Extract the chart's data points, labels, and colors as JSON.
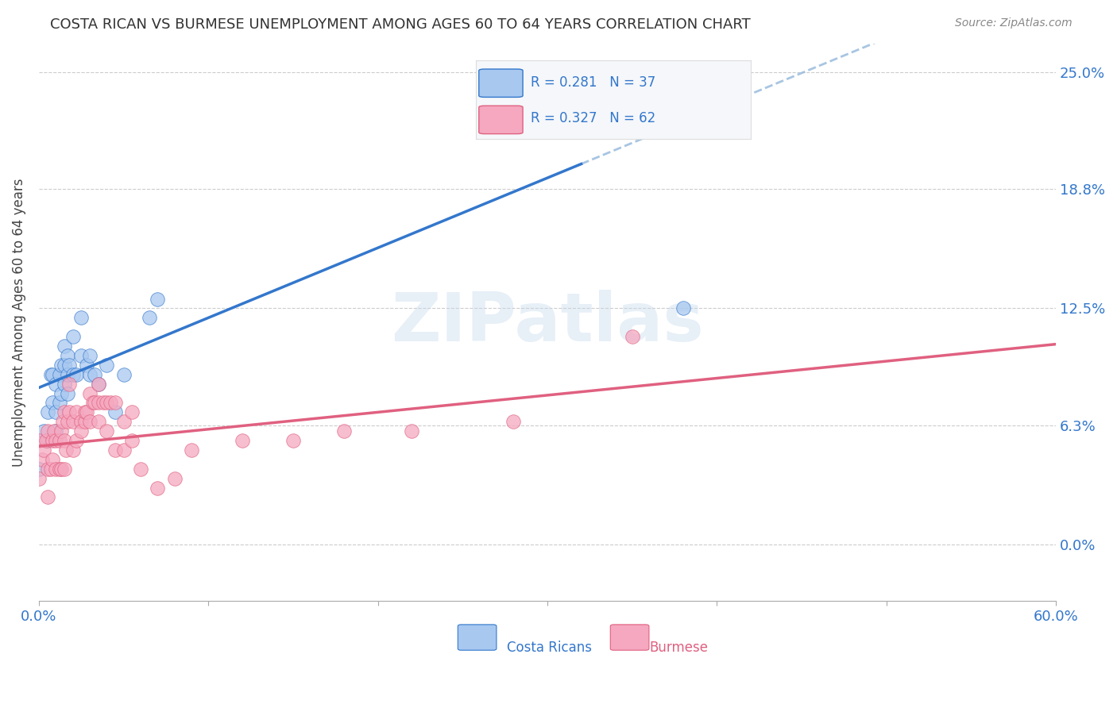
{
  "title": "COSTA RICAN VS BURMESE UNEMPLOYMENT AMONG AGES 60 TO 64 YEARS CORRELATION CHART",
  "source": "Source: ZipAtlas.com",
  "ylabel": "Unemployment Among Ages 60 to 64 years",
  "xmin": 0.0,
  "xmax": 0.6,
  "ymin": -0.03,
  "ymax": 0.265,
  "yticks": [
    0.0,
    0.063,
    0.125,
    0.188,
    0.25
  ],
  "ytick_labels": [
    "0.0%",
    "6.3%",
    "12.5%",
    "18.8%",
    "25.0%"
  ],
  "xticks": [
    0.0,
    0.1,
    0.2,
    0.3,
    0.4,
    0.5,
    0.6
  ],
  "xtick_labels": [
    "0.0%",
    "",
    "",
    "",
    "",
    "",
    "60.0%"
  ],
  "costa_rican_color": "#a8c8f0",
  "burmese_color": "#f5a8c0",
  "trend_cr_color": "#3377cc",
  "trend_bur_color": "#e06080",
  "trend_cr_dashed_color": "#99bbdd",
  "r_cr": 0.281,
  "n_cr": 37,
  "r_bur": 0.327,
  "n_bur": 62,
  "watermark": "ZIPatlas",
  "cr_trend_start_x": 0.0,
  "cr_trend_end_solid_x": 0.32,
  "cr_trend_slope": 0.37,
  "cr_trend_intercept": 0.083,
  "bur_trend_slope": 0.09,
  "bur_trend_intercept": 0.052,
  "costa_ricans_x": [
    0.0,
    0.003,
    0.005,
    0.005,
    0.007,
    0.008,
    0.008,
    0.01,
    0.01,
    0.01,
    0.012,
    0.012,
    0.013,
    0.013,
    0.015,
    0.015,
    0.015,
    0.017,
    0.017,
    0.017,
    0.018,
    0.02,
    0.02,
    0.022,
    0.025,
    0.025,
    0.028,
    0.03,
    0.03,
    0.033,
    0.035,
    0.04,
    0.045,
    0.05,
    0.065,
    0.07,
    0.38
  ],
  "costa_ricans_y": [
    0.04,
    0.06,
    0.055,
    0.07,
    0.09,
    0.075,
    0.09,
    0.06,
    0.07,
    0.085,
    0.075,
    0.09,
    0.08,
    0.095,
    0.085,
    0.095,
    0.105,
    0.08,
    0.09,
    0.1,
    0.095,
    0.09,
    0.11,
    0.09,
    0.1,
    0.12,
    0.095,
    0.09,
    0.1,
    0.09,
    0.085,
    0.095,
    0.07,
    0.09,
    0.12,
    0.13,
    0.125
  ],
  "burmese_x": [
    0.0,
    0.0,
    0.002,
    0.003,
    0.004,
    0.005,
    0.005,
    0.005,
    0.007,
    0.008,
    0.008,
    0.009,
    0.01,
    0.01,
    0.012,
    0.012,
    0.013,
    0.013,
    0.014,
    0.015,
    0.015,
    0.015,
    0.016,
    0.017,
    0.018,
    0.018,
    0.02,
    0.02,
    0.022,
    0.022,
    0.025,
    0.025,
    0.027,
    0.027,
    0.028,
    0.03,
    0.03,
    0.032,
    0.033,
    0.035,
    0.035,
    0.035,
    0.038,
    0.04,
    0.04,
    0.042,
    0.045,
    0.045,
    0.05,
    0.05,
    0.055,
    0.055,
    0.06,
    0.07,
    0.08,
    0.09,
    0.12,
    0.15,
    0.18,
    0.22,
    0.28,
    0.35
  ],
  "burmese_y": [
    0.035,
    0.055,
    0.045,
    0.05,
    0.055,
    0.025,
    0.04,
    0.06,
    0.04,
    0.045,
    0.055,
    0.06,
    0.04,
    0.055,
    0.04,
    0.055,
    0.04,
    0.06,
    0.065,
    0.04,
    0.055,
    0.07,
    0.05,
    0.065,
    0.07,
    0.085,
    0.05,
    0.065,
    0.055,
    0.07,
    0.065,
    0.06,
    0.065,
    0.07,
    0.07,
    0.065,
    0.08,
    0.075,
    0.075,
    0.065,
    0.075,
    0.085,
    0.075,
    0.06,
    0.075,
    0.075,
    0.05,
    0.075,
    0.05,
    0.065,
    0.055,
    0.07,
    0.04,
    0.03,
    0.035,
    0.05,
    0.055,
    0.055,
    0.06,
    0.06,
    0.065,
    0.11
  ]
}
